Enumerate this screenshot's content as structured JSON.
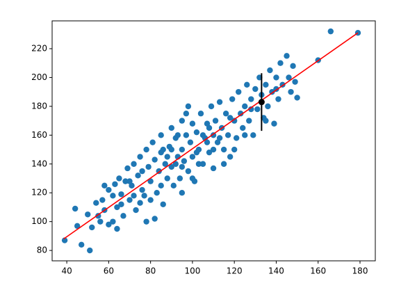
{
  "chart_data": {
    "type": "scatter",
    "xlim": [
      33.0,
      187.3
    ],
    "ylim": [
      72.8,
      239.3
    ],
    "xticks": [
      40,
      60,
      80,
      100,
      120,
      140,
      160,
      180
    ],
    "yticks": [
      80,
      100,
      120,
      140,
      160,
      180,
      200,
      220
    ],
    "series": [
      {
        "type": "scatter",
        "color": "#1f77b4",
        "x": [
          39,
          44,
          45,
          47,
          51,
          50,
          52,
          55,
          54,
          56,
          57,
          58,
          60,
          60,
          62,
          63,
          64,
          65,
          66,
          67,
          68,
          69,
          70,
          71,
          72,
          73,
          74,
          75,
          76,
          77,
          78,
          78,
          79,
          80,
          81,
          82,
          83,
          84,
          85,
          85,
          86,
          87,
          88,
          89,
          90,
          90,
          91,
          92,
          93,
          94,
          95,
          95,
          96,
          97,
          98,
          99,
          100,
          100,
          101,
          102,
          103,
          104,
          105,
          106,
          107,
          108,
          109,
          110,
          110,
          111,
          112,
          113,
          114,
          115,
          116,
          117,
          118,
          119,
          120,
          121,
          122,
          123,
          124,
          125,
          126,
          127,
          128,
          129,
          130,
          131,
          132,
          133,
          134,
          135,
          136,
          137,
          138,
          139,
          140,
          141,
          142,
          143,
          145,
          146,
          147,
          148,
          149,
          150,
          160,
          166,
          179,
          98,
          97,
          80,
          75,
          70,
          85,
          92,
          105,
          115,
          120,
          125,
          88,
          93,
          103,
          108,
          113,
          118,
          128,
          135,
          140,
          62,
          66,
          58,
          64,
          82,
          72,
          76,
          86,
          95,
          100,
          110,
          95,
          102,
          90,
          107
        ],
        "values": [
          87,
          109,
          97,
          84,
          80,
          105,
          96,
          104,
          113,
          100,
          115,
          108,
          122,
          98,
          118,
          126,
          110,
          130,
          119,
          104,
          128,
          137,
          115,
          125,
          140,
          108,
          132,
          145,
          122,
          118,
          150,
          100,
          138,
          128,
          155,
          143,
          120,
          135,
          160,
          148,
          112,
          140,
          130,
          152,
          165,
          138,
          125,
          158,
          145,
          130,
          170,
          150,
          142,
          160,
          135,
          155,
          168,
          145,
          128,
          162,
          150,
          175,
          140,
          158,
          168,
          148,
          180,
          160,
          137,
          170,
          155,
          183,
          165,
          150,
          175,
          160,
          145,
          185,
          170,
          158,
          190,
          175,
          165,
          180,
          195,
          170,
          185,
          160,
          192,
          178,
          200,
          188,
          172,
          195,
          180,
          205,
          190,
          168,
          200,
          185,
          210,
          195,
          215,
          200,
          190,
          208,
          197,
          186,
          212,
          232,
          231,
          180,
          175,
          115,
          113,
          128,
          125,
          140,
          160,
          140,
          150,
          160,
          145,
          160,
          140,
          165,
          158,
          172,
          178,
          170,
          192,
          100,
          112,
          125,
          95,
          102,
          118,
          135,
          150,
          120,
          130,
          150,
          138,
          148,
          150,
          155
        ]
      },
      {
        "type": "line",
        "color": "#ff0000",
        "x": [
          38.5,
          179
        ],
        "values": [
          88,
          231
        ]
      },
      {
        "type": "errorbar",
        "color": "#000000",
        "x": [
          133
        ],
        "values": [
          183
        ],
        "errors": [
          20
        ]
      }
    ]
  }
}
